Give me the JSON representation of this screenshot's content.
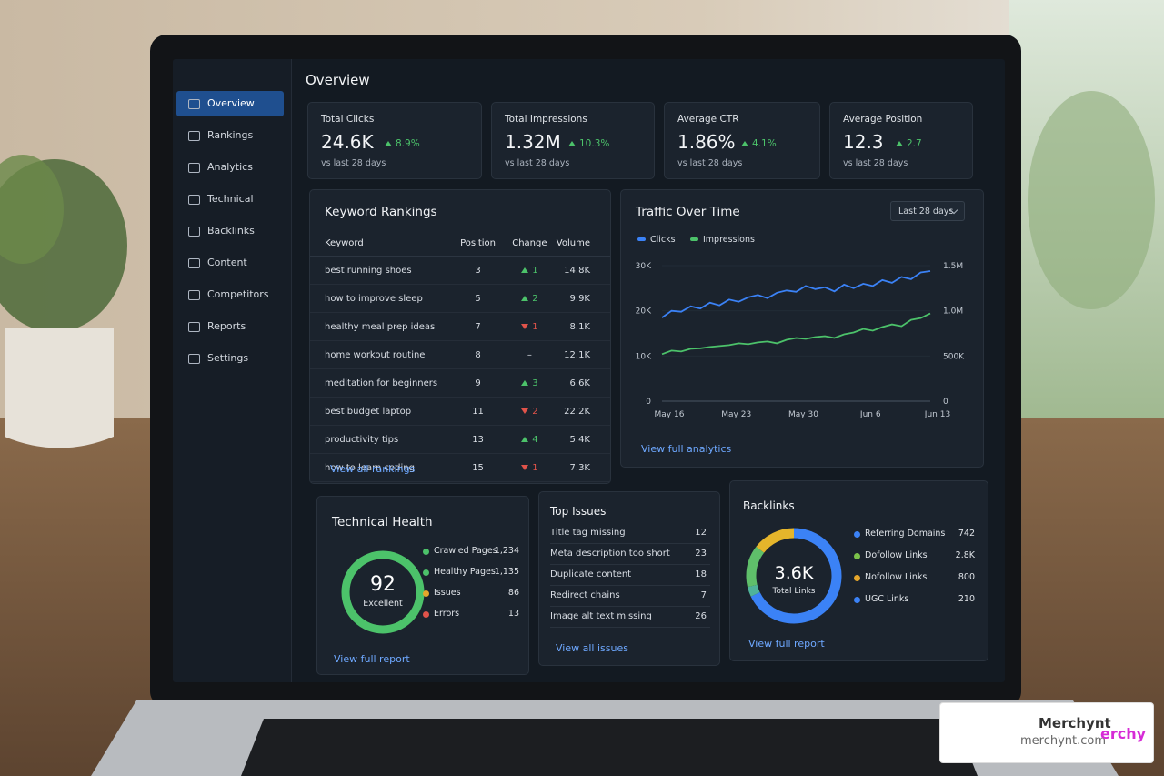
{
  "sidebar": {
    "items": [
      "Overview",
      "Rankings",
      "Analytics",
      "Technical",
      "Backlinks",
      "Content",
      "Competitors",
      "Reports",
      "Settings"
    ],
    "active": 0
  },
  "header": {
    "title": "Overview"
  },
  "kpis": [
    {
      "label": "Total Clicks",
      "value": "24.6K",
      "change": "8.9%",
      "note": "vs last 28 days"
    },
    {
      "label": "Total Impressions",
      "value": "1.32M",
      "change": "10.3%",
      "note": "vs last 28 days"
    },
    {
      "label": "Average CTR",
      "value": "1.86%",
      "change": "4.1%",
      "note": "vs last 28 days"
    },
    {
      "label": "Average Position",
      "value": "12.3",
      "change": "2.7",
      "note": "vs last 28 days"
    }
  ],
  "rankings": {
    "title": "Keyword Rankings",
    "columns": [
      "Keyword",
      "Position",
      "Change",
      "Volume"
    ],
    "rows": [
      [
        "best running shoes",
        3,
        "1",
        "14.8K"
      ],
      [
        "how to improve sleep",
        5,
        "2",
        "9.9K"
      ],
      [
        "healthy meal prep ideas",
        7,
        "1",
        "8.1K"
      ],
      [
        "home workout routine",
        8,
        "–",
        "12.1K"
      ],
      [
        "meditation for beginners",
        9,
        "3",
        "6.6K"
      ],
      [
        "best budget laptop",
        11,
        "2",
        "22.2K"
      ],
      [
        "productivity tips",
        13,
        "4",
        "5.4K"
      ],
      [
        "how to learn coding",
        15,
        "1",
        "7.3K"
      ]
    ],
    "directions": [
      "up",
      "up",
      "down",
      "none",
      "up",
      "down",
      "up",
      "down"
    ],
    "link": "View all rankings"
  },
  "traffic": {
    "title": "Traffic Over Time",
    "range": "Last 28 days",
    "link": "View full analytics",
    "chart": {
      "type": "line",
      "x": [
        0,
        1,
        2,
        3,
        4,
        5,
        6,
        7,
        8,
        9,
        10,
        11,
        12,
        13,
        14,
        15,
        16,
        17,
        18,
        19,
        20,
        21,
        22,
        23,
        24,
        25,
        26,
        27,
        28
      ],
      "xlim": [
        0,
        28
      ],
      "xticks": [
        {
          "value": 0,
          "label": "May 16"
        },
        {
          "value": 7,
          "label": "May 23"
        },
        {
          "value": 14,
          "label": "May 30"
        },
        {
          "value": 21,
          "label": "Jun 6"
        },
        {
          "value": 28,
          "label": "Jun 13"
        }
      ],
      "ylim": [
        0,
        30000
      ],
      "yticks": [
        0,
        {
          "value": 10000,
          "label": "10K"
        },
        {
          "value": 20000,
          "label": "20K"
        },
        {
          "value": 30000,
          "label": "30K"
        }
      ],
      "y2lim": [
        0,
        1500000
      ],
      "y2ticks": [
        0,
        {
          "value": 500000,
          "label": "500K"
        },
        {
          "value": 1000000,
          "label": "1.0M"
        },
        {
          "value": 1500000,
          "label": "1.5M"
        }
      ],
      "grid": true,
      "series": [
        {
          "name": "Clicks",
          "color": "#3b82f6",
          "values": [
            18500,
            20000,
            19800,
            21000,
            20500,
            21800,
            21200,
            22500,
            22000,
            23000,
            23500,
            22800,
            24000,
            24500,
            24200,
            25500,
            24800,
            25200,
            24300,
            25800,
            25000,
            26000,
            25500,
            26800,
            26200,
            27500,
            27000,
            28500,
            28800
          ]
        },
        {
          "name": "Impressions",
          "color": "#4cc26a",
          "axis": "y2",
          "values": [
            520000,
            560000,
            550000,
            580000,
            585000,
            600000,
            610000,
            620000,
            640000,
            630000,
            650000,
            660000,
            640000,
            680000,
            700000,
            690000,
            710000,
            720000,
            700000,
            740000,
            760000,
            800000,
            780000,
            820000,
            850000,
            830000,
            900000,
            920000,
            970000
          ]
        }
      ]
    }
  },
  "health": {
    "title": "Technical Health",
    "score": "92",
    "status": "Excellent",
    "items": [
      {
        "label": "Crawled Pages",
        "value": "1,234",
        "color": "#4cc26a"
      },
      {
        "label": "Healthy Pages",
        "value": "1,135",
        "color": "#4cc26a"
      },
      {
        "label": "Issues",
        "value": "86",
        "color": "#e5a62b"
      },
      {
        "label": "Errors",
        "value": "13",
        "color": "#e0534a"
      }
    ],
    "link": "View full report"
  },
  "issues": {
    "title": "Top Issues",
    "rows": [
      [
        "Title tag missing",
        12
      ],
      [
        "Meta description too short",
        23
      ],
      [
        "Duplicate content",
        18
      ],
      [
        "Redirect chains",
        7
      ],
      [
        "Image alt text missing",
        26
      ]
    ],
    "link": "View all issues"
  },
  "backlinks": {
    "title": "Backlinks",
    "total": "3.6K",
    "total_label": "Total Links",
    "items": [
      {
        "label": "Referring Domains",
        "value": "742",
        "color": "#3b82f6"
      },
      {
        "label": "Dofollow Links",
        "value": "2.8K",
        "color": "#7cc24a"
      },
      {
        "label": "Nofollow Links",
        "value": "800",
        "color": "#e5a62b"
      },
      {
        "label": "UGC Links",
        "value": "210",
        "color": "#3b82f6"
      }
    ],
    "link": "View full report"
  },
  "watermark": {
    "brand": "Merchynt",
    "url": "merchynt.com",
    "overlay": "erchy"
  }
}
